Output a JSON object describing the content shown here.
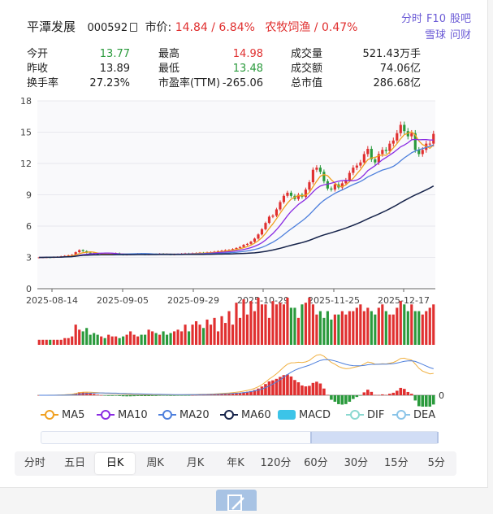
{
  "header": {
    "name": "平潭发展",
    "code": "000592",
    "price_label": "市价:",
    "price_text": "14.84 / 6.84%",
    "sector_text": "农牧饲渔 / 0.47%"
  },
  "links": {
    "row1": [
      "分时",
      "F10",
      "股吧"
    ],
    "row2": [
      "雪球",
      "问财"
    ]
  },
  "stats": {
    "open_label": "今开",
    "open": "13.77",
    "prev_label": "昨收",
    "prev": "13.89",
    "turnover_label": "换手率",
    "turnover": "27.23%",
    "high_label": "最高",
    "high": "14.98",
    "low_label": "最低",
    "low": "13.48",
    "pe_label": "市盈率(TTM)",
    "pe": "-265.06",
    "vol_label": "成交量",
    "vol": "521.43万手",
    "amt_label": "成交额",
    "amt": "74.06亿",
    "cap_label": "总市值",
    "cap": "286.68亿"
  },
  "colors": {
    "up": "#e03030",
    "down": "#2a9a3c",
    "ma5": "#f0a020",
    "ma10": "#8a2be2",
    "ma20": "#4d7fdc",
    "ma60": "#16234a",
    "macd": "#3cc4e8",
    "dif": "#8ad8d0",
    "dea": "#8ac4e8"
  },
  "chart_data": {
    "type": "candlestick",
    "ylim": [
      0,
      18
    ],
    "yticks": [
      "0",
      "3",
      "6",
      "9",
      "12",
      "15",
      "18"
    ],
    "xticks": [
      "2025-08-14",
      "2025-09-05",
      "2025-09-29",
      "2025-10-29",
      "2025-11-25",
      "2025-12-17"
    ],
    "closes": [
      3.0,
      3.0,
      3.02,
      3.01,
      3.03,
      3.05,
      3.1,
      3.15,
      3.2,
      3.25,
      3.5,
      3.7,
      3.6,
      3.45,
      3.4,
      3.35,
      3.3,
      3.32,
      3.28,
      3.3,
      3.35,
      3.4,
      3.3,
      3.25,
      3.28,
      3.3,
      3.32,
      3.35,
      3.3,
      3.28,
      3.3,
      3.32,
      3.3,
      3.35,
      3.33,
      3.3,
      3.28,
      3.3,
      3.32,
      3.35,
      3.38,
      3.36,
      3.4,
      3.42,
      3.45,
      3.4,
      3.48,
      3.5,
      3.55,
      3.6,
      3.65,
      3.7,
      3.72,
      3.8,
      3.9,
      4.0,
      4.2,
      4.3,
      4.5,
      4.8,
      5.2,
      5.7,
      6.3,
      6.9,
      7.0,
      7.6,
      8.3,
      8.9,
      9.2,
      8.9,
      8.6,
      9.0,
      8.8,
      9.5,
      10.2,
      11.4,
      11.6,
      11.2,
      10.3,
      9.6,
      9.5,
      10.0,
      9.7,
      10.1,
      10.4,
      11.1,
      11.6,
      11.8,
      12.1,
      12.9,
      13.4,
      12.4,
      12.1,
      12.9,
      13.3,
      13.2,
      13.9,
      14.2,
      14.9,
      15.7,
      15.1,
      14.6,
      14.9,
      13.3,
      12.9,
      13.3,
      13.9,
      13.9,
      14.84
    ],
    "volumes": [
      3,
      3,
      3,
      3,
      3,
      3,
      3,
      4,
      4,
      5,
      12,
      9,
      8,
      10,
      6,
      7,
      6,
      5,
      4,
      6,
      5,
      5,
      4,
      5,
      6,
      8,
      6,
      5,
      6,
      6,
      9,
      8,
      7,
      6,
      8,
      6,
      7,
      8,
      9,
      8,
      12,
      8,
      12,
      14,
      12,
      10,
      15,
      12,
      16,
      8,
      17,
      13,
      20,
      12,
      25,
      16,
      27,
      18,
      26,
      20,
      28,
      24,
      24,
      16,
      26,
      24,
      25,
      24,
      28,
      22,
      22,
      16,
      24,
      25,
      28,
      24,
      18,
      20,
      16,
      20,
      15,
      18,
      18,
      20,
      18,
      20,
      20,
      22,
      24,
      20,
      22,
      20,
      18,
      22,
      24,
      20,
      18,
      18,
      22,
      26,
      24,
      20,
      24,
      20,
      20,
      18,
      20,
      22,
      24
    ],
    "series_names": [
      "MA5",
      "MA10",
      "MA20",
      "MA60",
      "MACD",
      "DIF",
      "DEA"
    ],
    "macd_zero_label": "0"
  },
  "periods": [
    "分时",
    "五日",
    "日K",
    "周K",
    "月K",
    "年K",
    "120分",
    "60分",
    "30分",
    "15分",
    "5分"
  ],
  "active_period": "日K"
}
